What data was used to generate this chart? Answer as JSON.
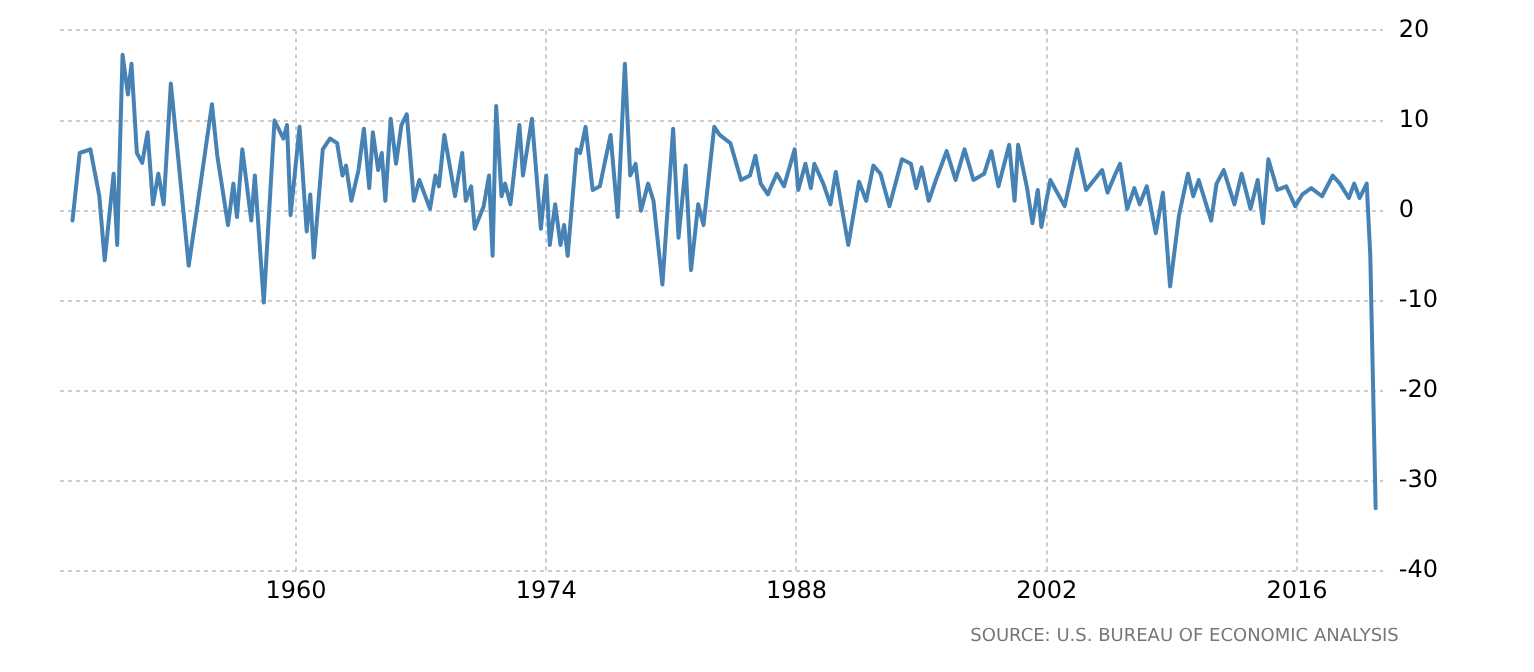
{
  "chart_data": {
    "type": "line",
    "x": [
      1947.5,
      1947.9,
      1948.5,
      1949.0,
      1949.3,
      1949.8,
      1950.0,
      1950.3,
      1950.6,
      1950.8,
      1951.1,
      1951.4,
      1951.7,
      1952.0,
      1952.3,
      1952.6,
      1953.0,
      1953.4,
      1954.0,
      1954.4,
      1955.3,
      1955.6,
      1956.2,
      1956.5,
      1956.7,
      1957.0,
      1957.5,
      1957.7,
      1958.2,
      1958.8,
      1959.3,
      1959.5,
      1959.7,
      1960.2,
      1960.6,
      1960.8,
      1961.0,
      1961.5,
      1961.9,
      1962.3,
      1962.6,
      1962.8,
      1963.1,
      1963.5,
      1963.8,
      1964.1,
      1964.3,
      1964.6,
      1964.8,
      1965.0,
      1965.3,
      1965.6,
      1965.9,
      1966.2,
      1966.6,
      1966.9,
      1967.5,
      1967.8,
      1968.0,
      1968.3,
      1968.9,
      1969.3,
      1969.5,
      1969.8,
      1970.0,
      1970.5,
      1970.8,
      1971.0,
      1971.2,
      1971.5,
      1971.7,
      1972.0,
      1972.5,
      1972.7,
      1973.2,
      1973.7,
      1974.0,
      1974.2,
      1974.5,
      1974.8,
      1975.0,
      1975.2,
      1975.7,
      1975.9,
      1976.2,
      1976.6,
      1977.0,
      1977.6,
      1978.0,
      1978.4,
      1978.7,
      1979.0,
      1979.3,
      1979.7,
      1980.0,
      1980.5,
      1981.1,
      1981.4,
      1981.8,
      1982.1,
      1982.5,
      1982.8,
      1983.4,
      1983.7,
      1984.3,
      1984.9,
      1985.4,
      1985.7,
      1986.0,
      1986.4,
      1986.5,
      1986.9,
      1987.3,
      1987.9,
      1988.1,
      1988.5,
      1988.8,
      1989.0,
      1989.5,
      1989.9,
      1990.2,
      1990.5,
      1990.9,
      1991.5,
      1991.9,
      1992.3,
      1992.7,
      1993.2,
      1993.9,
      1994.4,
      1994.7,
      1995.0,
      1995.4,
      1995.8,
      1996.4,
      1996.9,
      1997.4,
      1997.9,
      1998.5,
      1998.9,
      1999.3,
      1999.9,
      2000.2,
      2000.4,
      2000.9,
      2001.2,
      2001.5,
      2001.7,
      2002.2,
      2003.0,
      2003.7,
      2004.2,
      2005.1,
      2005.4,
      2005.8,
      2006.1,
      2006.5,
      2006.9,
      2007.2,
      2007.6,
      2008.1,
      2008.5,
      2008.9,
      2009.4,
      2009.9,
      2010.2,
      2010.5,
      2011.2,
      2011.5,
      2011.9,
      2012.5,
      2012.9,
      2013.4,
      2013.8,
      2014.1,
      2014.4,
      2014.9,
      2015.4,
      2015.9,
      2016.3,
      2016.8,
      2017.4,
      2018.0,
      2018.4,
      2018.9,
      2019.2,
      2019.5,
      2019.9,
      2020.1,
      2020.4
    ],
    "series": [
      {
        "color": "#4682b4",
        "values": [
          -1.1,
          6.4,
          6.8,
          1.6,
          -5.5,
          4.1,
          -3.8,
          17.3,
          12.9,
          16.3,
          6.4,
          5.3,
          8.7,
          0.7,
          4.1,
          0.7,
          14.1,
          6.1,
          -6.1,
          -0.7,
          11.8,
          6.1,
          -1.6,
          3.0,
          -0.7,
          6.8,
          -1.1,
          3.9,
          -10.2,
          10.0,
          8.0,
          9.5,
          -0.5,
          9.3,
          -2.3,
          1.8,
          -5.2,
          6.8,
          8.0,
          7.5,
          3.9,
          5.0,
          1.1,
          4.5,
          9.1,
          2.5,
          8.7,
          4.5,
          6.4,
          1.1,
          10.2,
          5.2,
          9.5,
          10.7,
          1.1,
          3.4,
          0.2,
          3.9,
          2.7,
          8.4,
          1.6,
          6.4,
          1.1,
          2.7,
          -2.0,
          0.5,
          3.9,
          -5.0,
          11.6,
          1.6,
          3.0,
          0.7,
          9.5,
          3.9,
          10.2,
          -2.0,
          3.9,
          -3.8,
          0.7,
          -3.8,
          -1.6,
          -5.0,
          6.8,
          6.4,
          9.3,
          2.3,
          2.7,
          8.4,
          -0.7,
          16.3,
          3.9,
          5.2,
          0.0,
          3.0,
          1.1,
          -8.2,
          9.1,
          -3.0,
          5.0,
          -6.6,
          0.7,
          -1.6,
          9.3,
          8.4,
          7.5,
          3.4,
          3.9,
          6.1,
          3.0,
          1.8,
          2.3,
          4.1,
          2.7,
          6.8,
          2.3,
          5.2,
          2.5,
          5.2,
          3.0,
          0.7,
          4.3,
          0.7,
          -3.8,
          3.2,
          1.1,
          5.0,
          4.1,
          0.5,
          5.7,
          5.2,
          2.5,
          4.8,
          1.1,
          3.4,
          6.6,
          3.4,
          6.8,
          3.4,
          4.1,
          6.6,
          2.7,
          7.3,
          1.1,
          7.3,
          2.5,
          -1.4,
          2.3,
          -1.8,
          3.4,
          0.5,
          6.8,
          2.3,
          4.5,
          2.0,
          3.9,
          5.2,
          0.2,
          2.5,
          0.7,
          2.7,
          -2.5,
          2.0,
          -8.4,
          -0.5,
          4.1,
          1.6,
          3.4,
          -1.1,
          3.0,
          4.5,
          0.7,
          4.1,
          0.2,
          3.4,
          -1.4,
          5.7,
          2.3,
          2.7,
          0.5,
          1.8,
          2.5,
          1.6,
          3.9,
          3.0,
          1.4,
          3.0,
          1.4,
          3.0,
          -5.0,
          -33.0
        ]
      }
    ],
    "xlim": [
      1946.8,
      2020.8
    ],
    "xticks": [
      1960,
      1974,
      1988,
      2002,
      2016
    ],
    "ylim": [
      -40,
      20
    ],
    "yticks": [
      -40,
      -30,
      -20,
      -10,
      0,
      10,
      20
    ],
    "grid": true,
    "marker": "none",
    "line_style": "solid",
    "annotations": [
      "SOURCE: U.S. BUREAU OF ECONOMIC ANALYSIS"
    ]
  }
}
